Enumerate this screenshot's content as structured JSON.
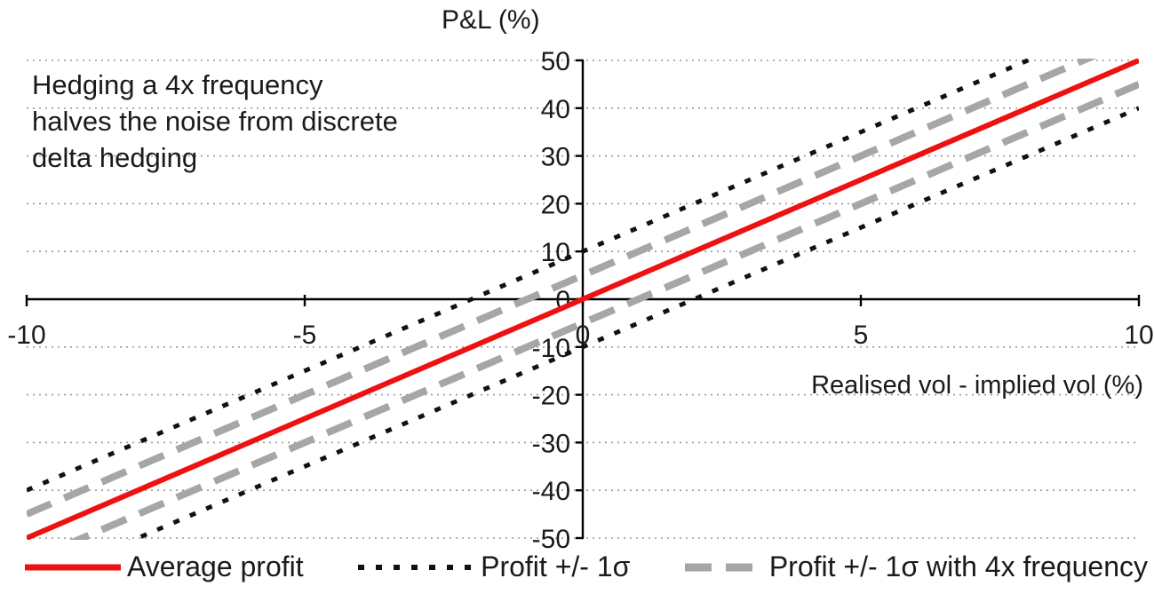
{
  "chart_data": {
    "type": "line",
    "title": "",
    "ylabel": "P&L (%)",
    "xlabel": "Realised vol - implied vol (%)",
    "annotation": "Hedging a 4x frequency\nhalves the noise from discrete\ndelta hedging",
    "xlim": [
      -10,
      10
    ],
    "ylim": [
      -50,
      50
    ],
    "x_ticks": [
      -10,
      -5,
      0,
      5,
      10
    ],
    "y_ticks": [
      50,
      40,
      30,
      20,
      10,
      0,
      -10,
      -20,
      -30,
      -40,
      -50
    ],
    "grid": "horizontal-dotted",
    "grid_color": "#999999",
    "axis_color": "#000000",
    "series": [
      {
        "name": "Profit + 1σ",
        "legend": "Profit +/- 1σ",
        "color": "#111111",
        "style": "short-dash",
        "points": [
          [
            -10,
            -40
          ],
          [
            10,
            60
          ]
        ]
      },
      {
        "name": "Profit - 1σ",
        "legend": "Profit +/- 1σ",
        "color": "#111111",
        "style": "short-dash",
        "points": [
          [
            -10,
            -60
          ],
          [
            10,
            40
          ]
        ]
      },
      {
        "name": "Profit + 1σ with 4x frequency",
        "legend": "Profit +/- 1σ with 4x frequency",
        "color": "#a6a6a6",
        "style": "long-dash",
        "points": [
          [
            -10,
            -45
          ],
          [
            10,
            55
          ]
        ]
      },
      {
        "name": "Profit - 1σ with 4x frequency",
        "legend": "Profit +/- 1σ with 4x frequency",
        "color": "#a6a6a6",
        "style": "long-dash",
        "points": [
          [
            -10,
            -55
          ],
          [
            10,
            45
          ]
        ]
      },
      {
        "name": "Average profit",
        "legend": "Average profit",
        "color": "#ee1111",
        "style": "solid",
        "points": [
          [
            -10,
            -50
          ],
          [
            10,
            50
          ]
        ]
      }
    ],
    "legend": [
      {
        "label": "Average profit",
        "color": "#ee1111",
        "style": "solid"
      },
      {
        "label": "Profit +/- 1σ",
        "color": "#111111",
        "style": "short-dash"
      },
      {
        "label": "Profit +/- 1σ with 4x frequency",
        "color": "#a6a6a6",
        "style": "long-dash"
      }
    ]
  }
}
